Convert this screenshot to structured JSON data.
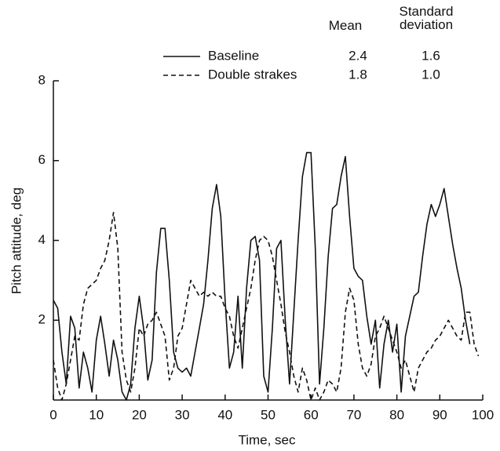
{
  "chart_data": {
    "type": "line",
    "x_label": "Time, sec",
    "y_label": "Pitch attitude, deg",
    "legend_columns": [
      "Mean",
      "Standard deviation"
    ],
    "legend": "top-right",
    "xlim": [
      0,
      100
    ],
    "ylim": [
      0,
      8
    ],
    "xticks": [
      0,
      10,
      20,
      30,
      40,
      50,
      60,
      70,
      80,
      90,
      100
    ],
    "yticks": [
      2,
      4,
      6,
      8
    ],
    "grid": false,
    "x": [
      0,
      1,
      2,
      3,
      4,
      5,
      6,
      7,
      8,
      9,
      10,
      11,
      12,
      13,
      14,
      15,
      16,
      17,
      18,
      19,
      20,
      21,
      22,
      23,
      24,
      25,
      26,
      27,
      28,
      29,
      30,
      31,
      32,
      33,
      34,
      35,
      36,
      37,
      38,
      39,
      40,
      41,
      42,
      43,
      44,
      45,
      46,
      47,
      48,
      49,
      50,
      51,
      52,
      53,
      54,
      55,
      56,
      57,
      58,
      59,
      60,
      61,
      62,
      63,
      64,
      65,
      66,
      67,
      68,
      69,
      70,
      71,
      72,
      73,
      74,
      75,
      76,
      77,
      78,
      79,
      80,
      81,
      82,
      83,
      84,
      85,
      86,
      87,
      88,
      89,
      90,
      91,
      92,
      93,
      94,
      95,
      96,
      97,
      98,
      99
    ],
    "series": [
      {
        "name": "Baseline",
        "color": "#111111",
        "linestyle": "solid",
        "mean": 2.4,
        "std": 1.6,
        "values": [
          2.5,
          2.3,
          1.2,
          0.4,
          2.1,
          1.8,
          0.3,
          1.2,
          0.8,
          0.2,
          1.5,
          2.1,
          1.4,
          0.6,
          1.5,
          1.0,
          0.2,
          0,
          0.4,
          1.8,
          2.6,
          1.8,
          0.5,
          1.0,
          3.2,
          4.3,
          4.3,
          3.0,
          1.2,
          0.8,
          0.7,
          0.8,
          0.6,
          1.2,
          1.8,
          2.4,
          3.5,
          4.8,
          5.4,
          4.6,
          2.5,
          0.8,
          1.2,
          2.6,
          0.8,
          2.8,
          4.0,
          4.1,
          3.5,
          0.6,
          0.2,
          1.8,
          3.8,
          4.0,
          2.0,
          0.4,
          2.2,
          4.0,
          5.6,
          6.2,
          6.2,
          3.8,
          0.4,
          1.8,
          3.6,
          4.8,
          4.9,
          5.6,
          6.1,
          4.6,
          3.3,
          3.1,
          3.0,
          2.1,
          1.4,
          2.0,
          0.3,
          1.4,
          2.0,
          1.2,
          1.9,
          0.2,
          1.6,
          2.1,
          2.6,
          2.7,
          3.6,
          4.4,
          4.9,
          4.6,
          4.9,
          5.3,
          4.6,
          3.9,
          3.3,
          2.8,
          2.0,
          1.4,
          null,
          null
        ]
      },
      {
        "name": "Double strakes",
        "color": "#111111",
        "linestyle": "dashed",
        "mean": 1.8,
        "std": {
          "value": 1.0,
          "label": "1.0"
        },
        "values": [
          1.0,
          0.3,
          0.0,
          0.4,
          1.0,
          1.6,
          1.5,
          2.4,
          2.8,
          2.9,
          3.0,
          3.3,
          3.5,
          4.0,
          4.7,
          3.8,
          1.2,
          0.5,
          0.2,
          0.8,
          1.8,
          1.6,
          1.9,
          2.0,
          2.2,
          1.9,
          1.6,
          0.5,
          0.8,
          1.6,
          1.8,
          2.4,
          3.0,
          2.8,
          2.6,
          2.7,
          2.6,
          2.7,
          2.6,
          2.6,
          2.3,
          2.1,
          1.6,
          1.3,
          1.8,
          2.3,
          2.8,
          3.5,
          4.0,
          4.1,
          4.0,
          3.6,
          3.0,
          2.4,
          1.7,
          1.2,
          0.6,
          0.2,
          0.8,
          0.5,
          0.0,
          0.3,
          0.0,
          0.2,
          0.5,
          0.4,
          0.2,
          0.8,
          2.2,
          2.8,
          2.5,
          1.4,
          0.8,
          0.6,
          0.9,
          1.6,
          1.8,
          2.1,
          1.8,
          1.5,
          1.2,
          0.8,
          1.0,
          0.6,
          0.2,
          0.8,
          1.0,
          1.2,
          1.3,
          1.5,
          1.6,
          1.8,
          2.0,
          1.8,
          1.6,
          1.5,
          2.2,
          2.2,
          1.4,
          1.1
        ]
      }
    ]
  }
}
